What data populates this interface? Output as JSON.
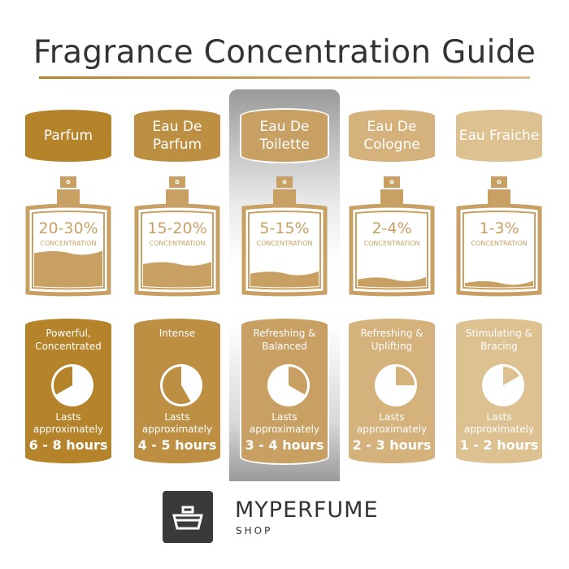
{
  "title": "Fragrance Concentration Guide",
  "concentration_label": "CONCENTRATION",
  "lasts_label": "Lasts approximately",
  "highlighted_index": 2,
  "columns": [
    {
      "name": "Parfum",
      "range": "20-30%",
      "fill_level": 0.45,
      "description": "Powerful, Concentrated",
      "hours": "6 - 8 hours",
      "color": "#b5832a"
    },
    {
      "name": "Eau De Parfum",
      "range": "15-20%",
      "fill_level": 0.3,
      "description": "Intense",
      "hours": "4 - 5 hours",
      "color": "#bd8f43"
    },
    {
      "name": "Eau De Toilette",
      "range": "5-15%",
      "fill_level": 0.17,
      "description": "Refreshing & Balanced",
      "hours": "3 - 4 hours",
      "color": "#c9a063"
    },
    {
      "name": "Eau De Cologne",
      "range": "2-4%",
      "fill_level": 0.09,
      "description": "Refreshing & Uplifting",
      "hours": "2 - 3 hours",
      "color": "#d5b27c"
    },
    {
      "name": "Eau Fraiche",
      "range": "1-3%",
      "fill_level": 0.04,
      "description": "Stimulating & Bracing",
      "hours": "1 - 2 hours",
      "color": "#dec191"
    }
  ],
  "bottle_color": "#c9a063",
  "logo": {
    "brand": "MYPERFUME",
    "sub": "SHOP"
  }
}
